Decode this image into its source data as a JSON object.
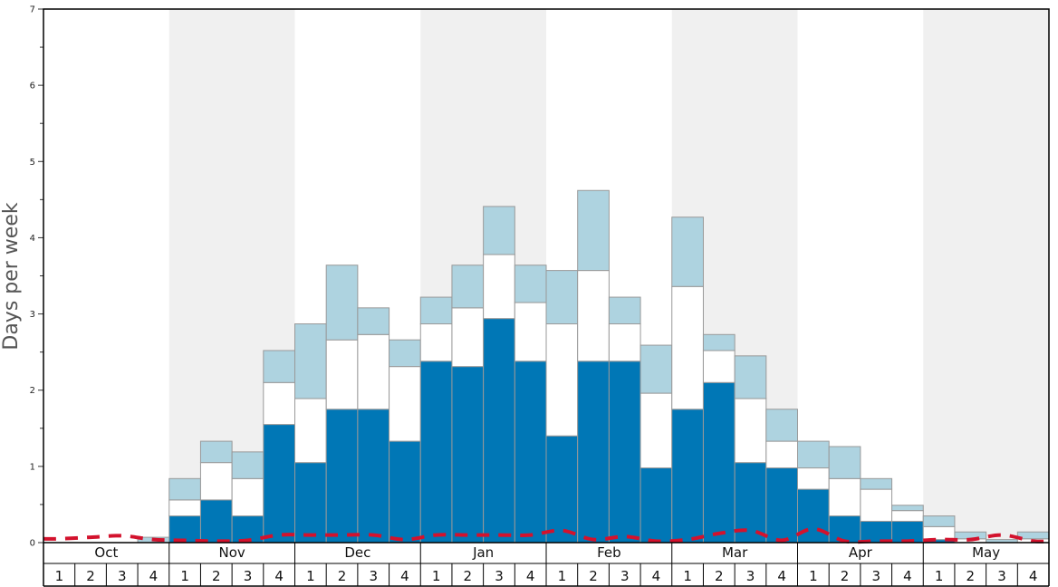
{
  "chart_data": {
    "type": "bar",
    "ylabel": "Days per week",
    "ylim": [
      0,
      7
    ],
    "y_ticks": [
      0,
      1,
      2,
      3,
      4,
      5,
      6,
      7
    ],
    "months": [
      "Oct",
      "Nov",
      "Dec",
      "Jan",
      "Feb",
      "Mar",
      "Apr",
      "May"
    ],
    "weeks": [
      "1",
      "2",
      "3",
      "4"
    ],
    "colors": {
      "dark_bar": "#0077b6",
      "white_bar": "#ffffff",
      "light_bar": "#aed3e0",
      "bar_border": "#999999",
      "stripe": "#f0f0f0",
      "dashed_line": "#d3122d"
    },
    "series": [
      {
        "values": [
          0,
          0,
          0,
          0,
          0.35,
          0.56,
          0.35,
          1.55,
          1.05,
          1.75,
          1.75,
          1.33,
          2.38,
          2.31,
          2.94,
          2.38,
          1.4,
          2.38,
          2.38,
          0.98,
          1.75,
          2.1,
          1.05,
          0.98,
          0.7,
          0.35,
          0.28,
          0.28,
          0.04,
          0,
          0,
          0
        ]
      },
      {
        "values": [
          0,
          0,
          0,
          0,
          0.56,
          1.05,
          0.84,
          2.1,
          1.89,
          2.66,
          2.73,
          2.31,
          2.87,
          3.08,
          3.78,
          3.15,
          2.87,
          3.57,
          2.87,
          1.96,
          3.36,
          2.52,
          1.89,
          1.33,
          0.98,
          0.84,
          0.7,
          0.42,
          0.21,
          0.05,
          0,
          0.05
        ]
      },
      {
        "values": [
          0,
          0,
          0,
          0.07,
          0.84,
          1.33,
          1.19,
          2.52,
          2.87,
          3.64,
          3.08,
          2.66,
          3.22,
          3.64,
          4.41,
          3.64,
          3.57,
          4.62,
          3.22,
          2.59,
          4.27,
          2.73,
          2.45,
          1.75,
          1.33,
          1.26,
          0.84,
          0.49,
          0.35,
          0.14,
          0.04,
          0.14
        ]
      },
      {
        "values": [
          0.05,
          0.07,
          0.09,
          0.04,
          0.03,
          0.02,
          0.03,
          0.1,
          0.1,
          0.1,
          0.1,
          0.04,
          0.1,
          0.1,
          0.1,
          0.1,
          0.16,
          0.04,
          0.08,
          0.02,
          0.04,
          0.12,
          0.16,
          0.03,
          0.18,
          0.02,
          0.02,
          0.02,
          0.04,
          0.04,
          0.1,
          0.02
        ]
      }
    ]
  }
}
